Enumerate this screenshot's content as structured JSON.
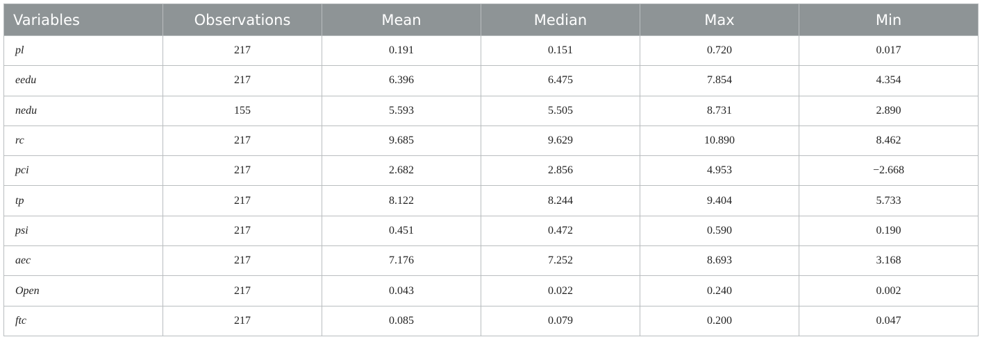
{
  "table": {
    "headers": [
      "Variables",
      "Observations",
      "Mean",
      "Median",
      "Max",
      "Min"
    ],
    "rows": [
      [
        "pl",
        "217",
        "0.191",
        "0.151",
        "0.720",
        "0.017"
      ],
      [
        "eedu",
        "217",
        "6.396",
        "6.475",
        "7.854",
        "4.354"
      ],
      [
        "nedu",
        "155",
        "5.593",
        "5.505",
        "8.731",
        "2.890"
      ],
      [
        "rc",
        "217",
        "9.685",
        "9.629",
        "10.890",
        "8.462"
      ],
      [
        "pci",
        "217",
        "2.682",
        "2.856",
        "4.953",
        "−2.668"
      ],
      [
        "tp",
        "217",
        "8.122",
        "8.244",
        "9.404",
        "5.733"
      ],
      [
        "psi",
        "217",
        "0.451",
        "0.472",
        "0.590",
        "0.190"
      ],
      [
        "aec",
        "217",
        "7.176",
        "7.252",
        "8.693",
        "3.168"
      ],
      [
        "Open",
        "217",
        "0.043",
        "0.022",
        "0.240",
        "0.002"
      ],
      [
        "ftc",
        "217",
        "0.085",
        "0.079",
        "0.200",
        "0.047"
      ]
    ]
  },
  "colors": {
    "header_background": "#8e9496",
    "header_text": "#ffffff",
    "grid_lines": "#b9bdbf"
  }
}
